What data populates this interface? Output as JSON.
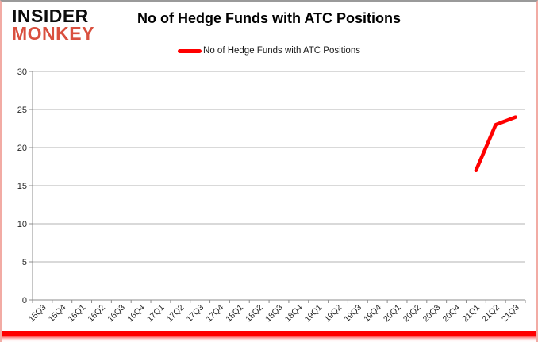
{
  "logo": {
    "line1": "INSIDER",
    "line2": "MONKEY",
    "line1_color": "#0d0d0d",
    "line2_color": "#d9503f"
  },
  "header": {
    "title": "No of Hedge Funds with ATC Positions"
  },
  "legend": {
    "label": "No of Hedge Funds with ATC Positions",
    "swatch_color": "#ff0000"
  },
  "chart_data": {
    "type": "line",
    "title": "No of Hedge Funds with ATC Positions",
    "categories": [
      "15Q3",
      "15Q4",
      "16Q1",
      "16Q2",
      "16Q3",
      "16Q4",
      "17Q1",
      "17Q2",
      "17Q3",
      "17Q4",
      "18Q1",
      "18Q2",
      "18Q3",
      "18Q4",
      "19Q1",
      "19Q2",
      "19Q3",
      "19Q4",
      "20Q1",
      "20Q2",
      "20Q3",
      "20Q4",
      "21Q1",
      "21Q2",
      "21Q3"
    ],
    "series": [
      {
        "name": "No of Hedge Funds with ATC Positions",
        "color": "#ff0000",
        "values": [
          null,
          null,
          null,
          null,
          null,
          null,
          null,
          null,
          null,
          null,
          null,
          null,
          null,
          null,
          null,
          null,
          null,
          null,
          null,
          null,
          null,
          null,
          17,
          23,
          24
        ]
      }
    ],
    "xlabel": "",
    "ylabel": "",
    "ylim": [
      0,
      30
    ],
    "ytick_step": 5,
    "grid": true,
    "legend_position": "top",
    "gridline_color": "#b3b3b3",
    "axis_color": "#8c8c8c"
  }
}
